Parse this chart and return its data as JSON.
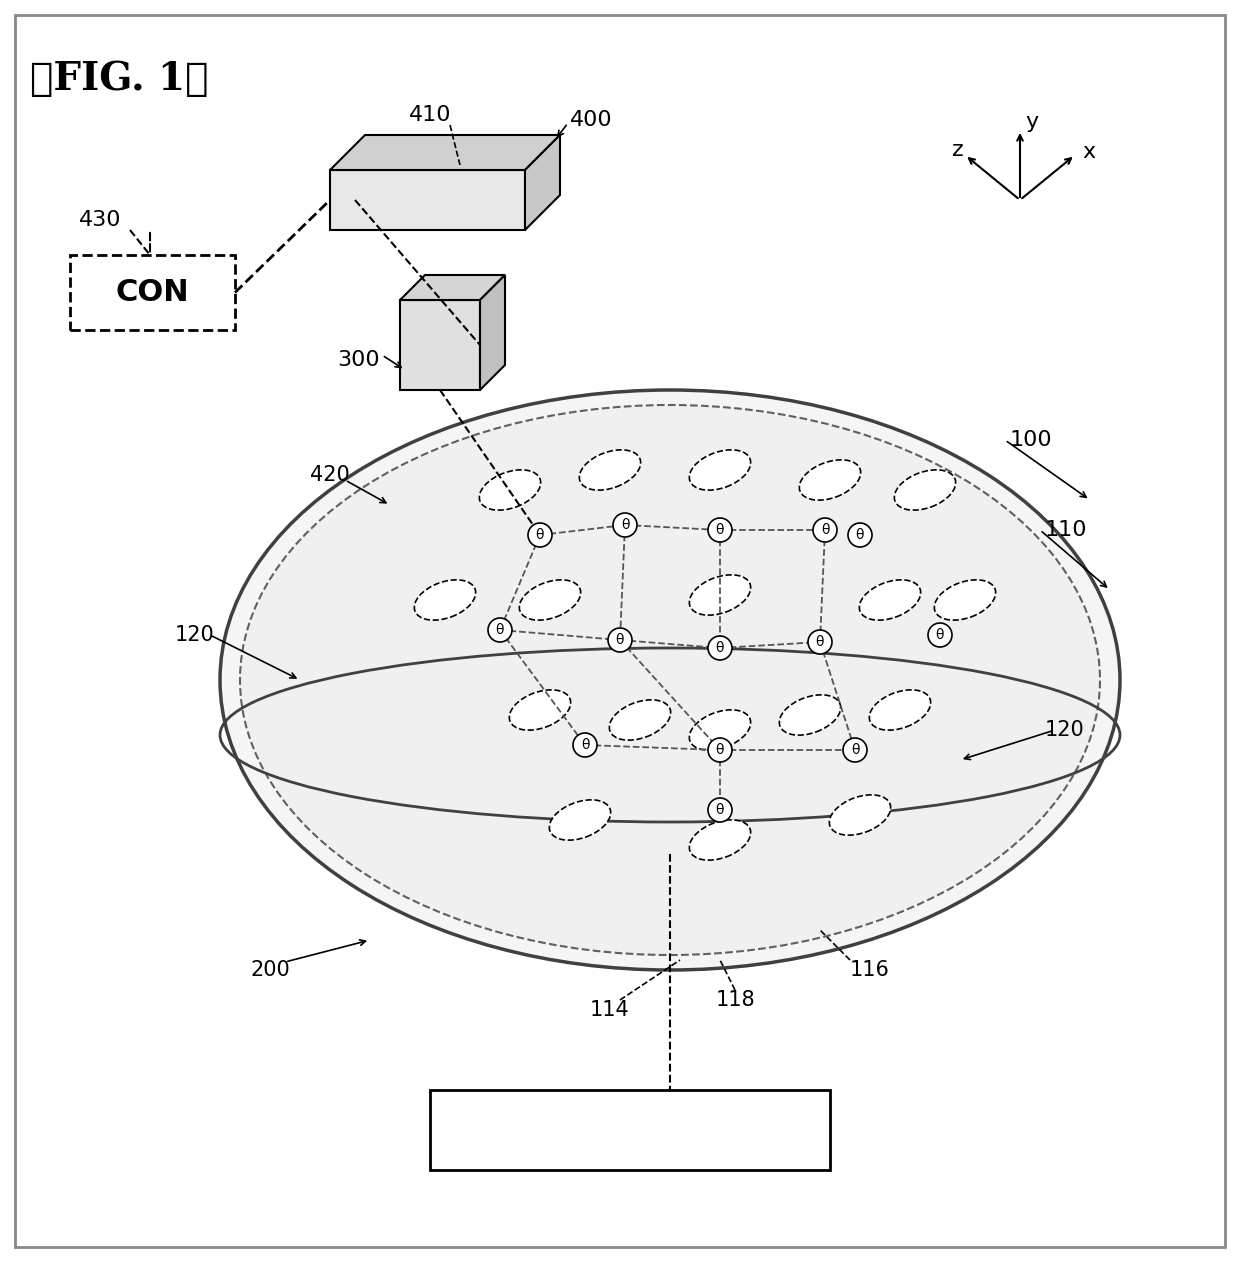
{
  "title": "【FIG. 1】",
  "bg_color": "#ffffff",
  "line_color": "#000000",
  "labels": {
    "fig": "【FIG. 1】",
    "con": "CON",
    "n100": "100",
    "n110": "110",
    "n114": "114",
    "n116": "116",
    "n118": "118",
    "n120a": "120",
    "n120b": "120",
    "n200": "200",
    "n300": "300",
    "n400": "400",
    "n410": "410",
    "n420": "420",
    "n430": "430",
    "x_axis": "x",
    "y_axis": "y",
    "z_axis": "z"
  }
}
